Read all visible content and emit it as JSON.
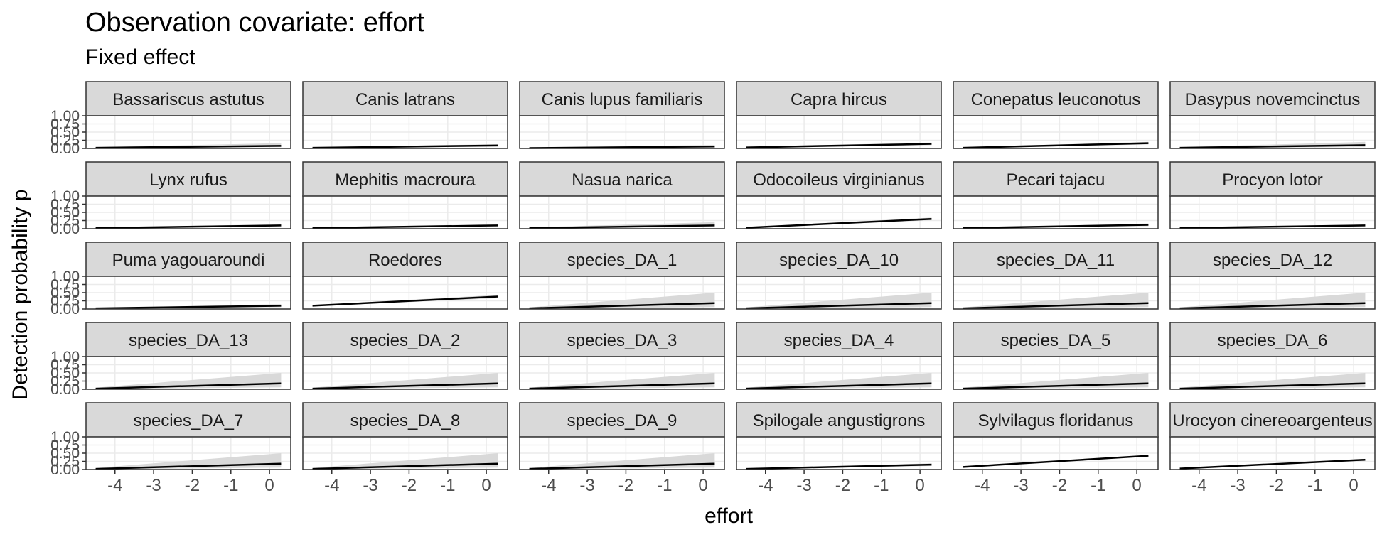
{
  "chart_data": {
    "type": "line",
    "title": "Observation covariate: effort",
    "subtitle": "Fixed effect",
    "xlabel": "effort",
    "ylabel": "Detection probability p",
    "xlim": [
      -4.75,
      0.55
    ],
    "ylim": [
      0,
      1
    ],
    "x_ticks": [
      -4,
      -3,
      -2,
      -1,
      0
    ],
    "x_tick_labels": [
      "-4",
      "-3",
      "-2",
      "-1",
      "0"
    ],
    "y_ticks": [
      0,
      0.25,
      0.5,
      0.75,
      1
    ],
    "y_tick_labels": [
      "0.00",
      "0.25",
      "0.50",
      "0.75",
      "1.00"
    ],
    "grid": true,
    "facet_layout": {
      "ncol": 6,
      "nrow": 5
    },
    "colors": {
      "line": "#000000",
      "ribbon": "#d9d9d9",
      "strip_fill": "#d9d9d9",
      "strip_border": "#333333",
      "grid": "#ebebeb"
    },
    "x": [
      -4.5,
      0.3
    ],
    "panels": [
      {
        "label": "Bassariscus astutus",
        "y": [
          0.02,
          0.08
        ],
        "lower": [
          0.01,
          0.04
        ],
        "upper": [
          0.04,
          0.16
        ]
      },
      {
        "label": "Canis latrans",
        "y": [
          0.02,
          0.09
        ],
        "lower": [
          0.01,
          0.06
        ],
        "upper": [
          0.03,
          0.13
        ]
      },
      {
        "label": "Canis lupus familiaris",
        "y": [
          0.01,
          0.06
        ],
        "lower": [
          0.005,
          0.03
        ],
        "upper": [
          0.02,
          0.11
        ]
      },
      {
        "label": "Capra hircus",
        "y": [
          0.03,
          0.14
        ],
        "lower": [
          0.015,
          0.1
        ],
        "upper": [
          0.05,
          0.18
        ]
      },
      {
        "label": "Conepatus leuconotus",
        "y": [
          0.02,
          0.16
        ],
        "lower": [
          0.01,
          0.12
        ],
        "upper": [
          0.04,
          0.2
        ]
      },
      {
        "label": "Dasypus novemcinctus",
        "y": [
          0.02,
          0.1
        ],
        "lower": [
          0.01,
          0.04
        ],
        "upper": [
          0.04,
          0.2
        ]
      },
      {
        "label": "Lynx rufus",
        "y": [
          0.02,
          0.1
        ],
        "lower": [
          0.01,
          0.07
        ],
        "upper": [
          0.03,
          0.14
        ]
      },
      {
        "label": "Mephitis macroura",
        "y": [
          0.02,
          0.1
        ],
        "lower": [
          0.01,
          0.07
        ],
        "upper": [
          0.03,
          0.14
        ]
      },
      {
        "label": "Nasua narica",
        "y": [
          0.02,
          0.1
        ],
        "lower": [
          0.01,
          0.05
        ],
        "upper": [
          0.04,
          0.2
        ]
      },
      {
        "label": "Odocoileus virginianus",
        "y": [
          0.03,
          0.3
        ],
        "lower": [
          0.02,
          0.26
        ],
        "upper": [
          0.05,
          0.34
        ]
      },
      {
        "label": "Pecari tajacu",
        "y": [
          0.02,
          0.12
        ],
        "lower": [
          0.01,
          0.08
        ],
        "upper": [
          0.03,
          0.16
        ]
      },
      {
        "label": "Procyon lotor",
        "y": [
          0.02,
          0.1
        ],
        "lower": [
          0.01,
          0.07
        ],
        "upper": [
          0.03,
          0.13
        ]
      },
      {
        "label": "Puma yagouaroundi",
        "y": [
          0.02,
          0.1
        ],
        "lower": [
          0.01,
          0.06
        ],
        "upper": [
          0.03,
          0.15
        ]
      },
      {
        "label": "Roedores",
        "y": [
          0.1,
          0.38
        ],
        "lower": [
          0.08,
          0.33
        ],
        "upper": [
          0.12,
          0.43
        ]
      },
      {
        "label": "species_DA_1",
        "y": [
          0.02,
          0.18
        ],
        "lower": [
          0.005,
          0.06
        ],
        "upper": [
          0.05,
          0.5
        ]
      },
      {
        "label": "species_DA_10",
        "y": [
          0.02,
          0.18
        ],
        "lower": [
          0.005,
          0.06
        ],
        "upper": [
          0.05,
          0.5
        ]
      },
      {
        "label": "species_DA_11",
        "y": [
          0.02,
          0.18
        ],
        "lower": [
          0.005,
          0.06
        ],
        "upper": [
          0.05,
          0.5
        ]
      },
      {
        "label": "species_DA_12",
        "y": [
          0.02,
          0.18
        ],
        "lower": [
          0.005,
          0.06
        ],
        "upper": [
          0.05,
          0.5
        ]
      },
      {
        "label": "species_DA_13",
        "y": [
          0.02,
          0.18
        ],
        "lower": [
          0.005,
          0.06
        ],
        "upper": [
          0.05,
          0.5
        ]
      },
      {
        "label": "species_DA_2",
        "y": [
          0.02,
          0.18
        ],
        "lower": [
          0.005,
          0.06
        ],
        "upper": [
          0.05,
          0.5
        ]
      },
      {
        "label": "species_DA_3",
        "y": [
          0.02,
          0.18
        ],
        "lower": [
          0.005,
          0.06
        ],
        "upper": [
          0.05,
          0.5
        ]
      },
      {
        "label": "species_DA_4",
        "y": [
          0.02,
          0.18
        ],
        "lower": [
          0.005,
          0.06
        ],
        "upper": [
          0.05,
          0.5
        ]
      },
      {
        "label": "species_DA_5",
        "y": [
          0.02,
          0.18
        ],
        "lower": [
          0.005,
          0.06
        ],
        "upper": [
          0.05,
          0.5
        ]
      },
      {
        "label": "species_DA_6",
        "y": [
          0.02,
          0.18
        ],
        "lower": [
          0.005,
          0.06
        ],
        "upper": [
          0.05,
          0.5
        ]
      },
      {
        "label": "species_DA_7",
        "y": [
          0.02,
          0.18
        ],
        "lower": [
          0.005,
          0.06
        ],
        "upper": [
          0.05,
          0.5
        ]
      },
      {
        "label": "species_DA_8",
        "y": [
          0.02,
          0.18
        ],
        "lower": [
          0.005,
          0.06
        ],
        "upper": [
          0.05,
          0.5
        ]
      },
      {
        "label": "species_DA_9",
        "y": [
          0.02,
          0.18
        ],
        "lower": [
          0.005,
          0.06
        ],
        "upper": [
          0.05,
          0.5
        ]
      },
      {
        "label": "Spilogale angustigrons",
        "y": [
          0.02,
          0.15
        ],
        "lower": [
          0.01,
          0.11
        ],
        "upper": [
          0.03,
          0.19
        ]
      },
      {
        "label": "Sylvilagus floridanus",
        "y": [
          0.08,
          0.42
        ],
        "lower": [
          0.07,
          0.4
        ],
        "upper": [
          0.09,
          0.44
        ]
      },
      {
        "label": "Urocyon cinereoargenteus",
        "y": [
          0.03,
          0.3
        ],
        "lower": [
          0.02,
          0.27
        ],
        "upper": [
          0.04,
          0.33
        ]
      }
    ]
  }
}
